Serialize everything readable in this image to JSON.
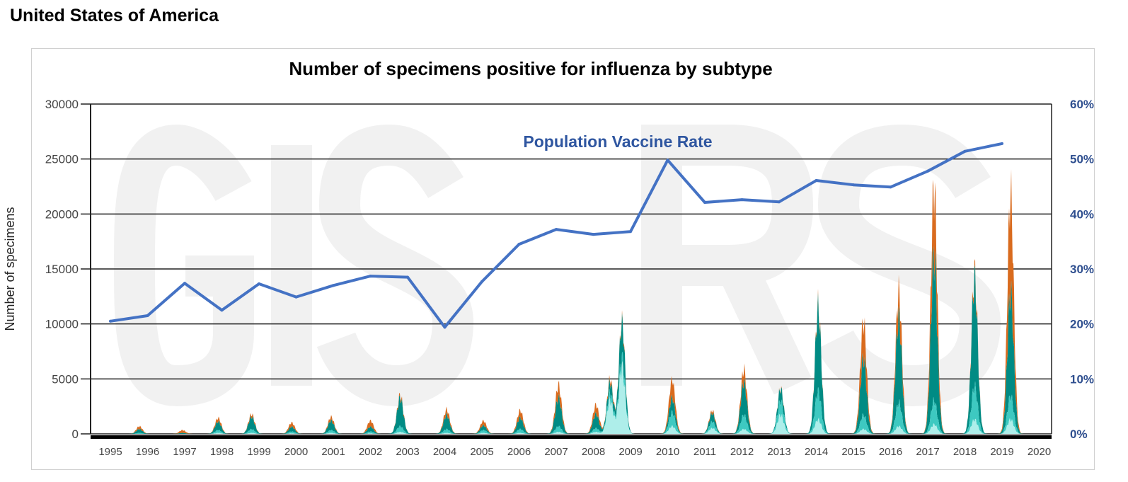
{
  "page": {
    "title": "United States of America"
  },
  "chart_data": {
    "type": "area",
    "title": "Number of specimens positive for influenza by subtype",
    "ylabel": "Number of specimens",
    "watermark": "GISRS",
    "annotation": "Population Vaccine Rate",
    "ylim": [
      0,
      30000
    ],
    "y_ticks": [
      "0",
      "5000",
      "10000",
      "15000",
      "20000",
      "25000",
      "30000"
    ],
    "y2lim": [
      0,
      60
    ],
    "y2_ticks": [
      "0%",
      "10%",
      "20%",
      "30%",
      "40%",
      "50%",
      "60%"
    ],
    "x_ticks": [
      "1995",
      "1996",
      "1997",
      "1998",
      "1999",
      "2000",
      "2001",
      "2002",
      "2003",
      "2004",
      "2005",
      "2006",
      "2007",
      "2008",
      "2009",
      "2010",
      "2011",
      "2012",
      "2013",
      "2014",
      "2015",
      "2016",
      "2017",
      "2018",
      "2019",
      "2020"
    ],
    "grid": true,
    "stack_colors": [
      "#aeeeea",
      "#3ec9c1",
      "#008b84",
      "#d96b1e"
    ],
    "seasons": [
      {
        "peak": 1995.78,
        "values": [
          0,
          100,
          400,
          300
        ]
      },
      {
        "peak": 1996.94,
        "values": [
          0,
          0,
          100,
          300
        ]
      },
      {
        "peak": 1997.9,
        "values": [
          100,
          300,
          900,
          400
        ]
      },
      {
        "peak": 1998.8,
        "values": [
          100,
          400,
          1300,
          300
        ]
      },
      {
        "peak": 1999.88,
        "values": [
          50,
          200,
          500,
          450
        ]
      },
      {
        "peak": 2000.94,
        "values": [
          100,
          300,
          1000,
          400
        ]
      },
      {
        "peak": 2002.0,
        "values": [
          50,
          200,
          500,
          650
        ]
      },
      {
        "peak": 2002.8,
        "values": [
          200,
          600,
          3000,
          300
        ]
      },
      {
        "peak": 2004.05,
        "values": [
          100,
          400,
          1500,
          600
        ]
      },
      {
        "peak": 2005.04,
        "values": [
          100,
          300,
          500,
          500
        ]
      },
      {
        "peak": 2006.03,
        "values": [
          100,
          400,
          1200,
          800
        ]
      },
      {
        "peak": 2007.06,
        "values": [
          200,
          600,
          3000,
          1400
        ]
      },
      {
        "peak": 2008.07,
        "values": [
          200,
          400,
          1500,
          1000
        ]
      },
      {
        "peak": 2008.45,
        "values": [
          3500,
          800,
          1200,
          400
        ]
      },
      {
        "peak": 2008.77,
        "values": [
          7000,
          1000,
          3800,
          300
        ]
      },
      {
        "peak": 2010.12,
        "values": [
          800,
          1500,
          1500,
          2000
        ]
      },
      {
        "peak": 2011.2,
        "values": [
          600,
          700,
          900,
          300
        ]
      },
      {
        "peak": 2012.05,
        "values": [
          500,
          1500,
          3500,
          1400
        ]
      },
      {
        "peak": 2013.04,
        "values": [
          2000,
          1500,
          1300,
          100
        ]
      },
      {
        "peak": 2014.05,
        "values": [
          1500,
          3000,
          8800,
          400
        ]
      },
      {
        "peak": 2015.27,
        "values": [
          500,
          1500,
          6000,
          4000
        ]
      },
      {
        "peak": 2016.22,
        "values": [
          800,
          2500,
          9000,
          2900
        ]
      },
      {
        "peak": 2017.17,
        "values": [
          1000,
          2500,
          15500,
          7400
        ]
      },
      {
        "peak": 2018.26,
        "values": [
          1500,
          3500,
          11500,
          700
        ]
      },
      {
        "peak": 2019.23,
        "values": [
          1500,
          2500,
          11000,
          10700
        ]
      }
    ],
    "vaccine_rate": {
      "color": "#4472c4",
      "years": [
        1995,
        1996,
        1997,
        1998,
        1999,
        2000,
        2001,
        2002,
        2003,
        2004,
        2005,
        2006,
        2007,
        2008,
        2009,
        2010,
        2011,
        2012,
        2013,
        2014,
        2015,
        2016,
        2017,
        2018,
        2019
      ],
      "percent": [
        20.5,
        21.5,
        27.4,
        22.5,
        27.3,
        24.9,
        27.0,
        28.7,
        28.5,
        19.4,
        27.7,
        34.5,
        37.2,
        36.3,
        36.8,
        49.8,
        42.1,
        42.6,
        42.2,
        46.1,
        45.3,
        44.9,
        47.8,
        51.4,
        52.8
      ]
    }
  }
}
